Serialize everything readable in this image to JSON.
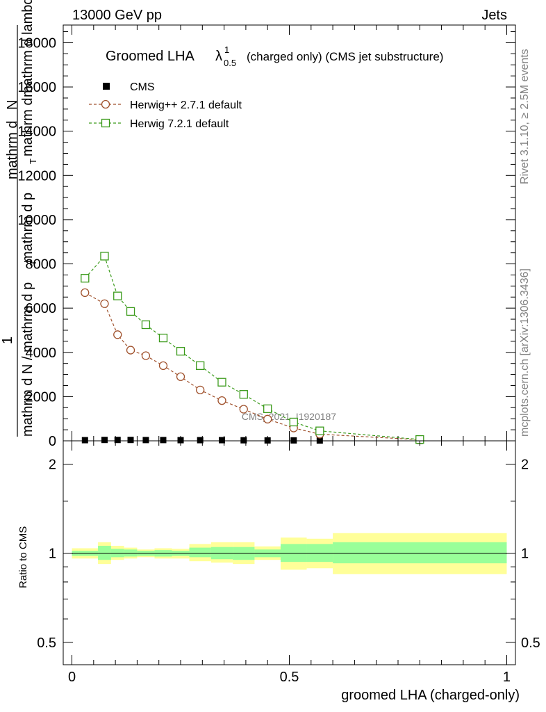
{
  "header": {
    "energy": "13000 GeV pp",
    "category": "Jets"
  },
  "side": {
    "rivet": "Rivet 3.1.10, ≥ 2.5M events",
    "mcplots": "mcplots.cern.ch [arXiv:1306.3436]"
  },
  "chart_data": [
    {
      "type": "line",
      "title": "Groomed LHA",
      "title_symbol": "λ",
      "title_sup": "1",
      "title_sub": "0.5",
      "subtitle": "(charged only) (CMS jet substructure)",
      "ylabel_lines": [
        "1",
        "mathrm d N / mathrm d p_T mathrm d N",
        "mathrm d p_T mathrm d lambda",
        "mathrm d^2N"
      ],
      "ylabel_parts": {
        "frac": "1",
        "denom": "mathrm d N / mathrm d p",
        "sub_t": "T",
        "mid": "mathrm d p",
        "mid_sub": "T",
        "num_a": "mathrm d",
        "num_b": "mathrm d lambda",
        "num_c": "mathrm d",
        "top": "N"
      },
      "ylim": [
        0,
        18800
      ],
      "yticks": [
        0,
        2000,
        4000,
        6000,
        8000,
        10000,
        12000,
        14000,
        16000,
        18000
      ],
      "ytick_labels": [
        "0",
        "2000",
        "4000",
        "6000",
        "8000",
        "10000",
        "12000",
        "14000",
        "16000",
        "18000"
      ],
      "xlim": [
        -0.02,
        1.02
      ],
      "watermark": "CMS_2021_I1920187",
      "legend_position": "top-left",
      "series": [
        {
          "name": "CMS",
          "marker": "filled-square",
          "color": "#000000",
          "x": [
            0.03,
            0.075,
            0.105,
            0.135,
            0.17,
            0.21,
            0.25,
            0.295,
            0.345,
            0.395,
            0.45,
            0.51,
            0.57,
            0.8
          ],
          "y": [
            30,
            40,
            40,
            40,
            35,
            35,
            30,
            30,
            30,
            25,
            20,
            20,
            15,
            5
          ]
        },
        {
          "name": "Herwig++ 2.7.1 default",
          "marker": "open-circle",
          "color": "#a0522d",
          "x": [
            0.03,
            0.075,
            0.105,
            0.135,
            0.17,
            0.21,
            0.25,
            0.295,
            0.345,
            0.395,
            0.45,
            0.51,
            0.57,
            0.8
          ],
          "y": [
            6700,
            6200,
            4800,
            4100,
            3850,
            3400,
            2900,
            2300,
            1820,
            1430,
            980,
            580,
            300,
            50
          ]
        },
        {
          "name": "Herwig 7.2.1 default",
          "marker": "open-square",
          "color": "#3a9a1a",
          "x": [
            0.03,
            0.075,
            0.105,
            0.135,
            0.17,
            0.21,
            0.25,
            0.295,
            0.345,
            0.395,
            0.45,
            0.51,
            0.57,
            0.8
          ],
          "y": [
            7350,
            8350,
            6550,
            5850,
            5250,
            4650,
            4050,
            3400,
            2650,
            2100,
            1450,
            850,
            450,
            60
          ]
        }
      ]
    },
    {
      "type": "area",
      "ylabel": "Ratio to CMS",
      "xlabel": "groomed LHA (charged-only)",
      "xlim": [
        -0.02,
        1.02
      ],
      "xticks": [
        0,
        0.5,
        1
      ],
      "xtick_labels": [
        "0",
        "0.5",
        "1"
      ],
      "ylim": [
        0.42,
        2.4
      ],
      "log_scale": true,
      "yticks": [
        0.5,
        1,
        2
      ],
      "ytick_labels": [
        "0.5",
        "1",
        "2"
      ],
      "bin_edges": [
        0,
        0.015,
        0.06,
        0.09,
        0.12,
        0.15,
        0.19,
        0.23,
        0.27,
        0.32,
        0.37,
        0.42,
        0.48,
        0.54,
        0.6,
        1.0
      ],
      "band_inner": {
        "color": "#99ff99",
        "lo": [
          0.98,
          0.98,
          0.95,
          0.97,
          0.975,
          0.98,
          0.975,
          0.98,
          0.97,
          0.955,
          0.95,
          0.97,
          0.935,
          0.935,
          0.925
        ],
        "hi": [
          1.02,
          1.02,
          1.06,
          1.035,
          1.03,
          1.02,
          1.025,
          1.02,
          1.045,
          1.05,
          1.05,
          1.03,
          1.075,
          1.075,
          1.09
        ]
      },
      "band_outer": {
        "color": "#ffff99",
        "lo": [
          0.96,
          0.96,
          0.92,
          0.95,
          0.96,
          0.97,
          0.96,
          0.96,
          0.94,
          0.93,
          0.92,
          0.95,
          0.88,
          0.89,
          0.85
        ],
        "hi": [
          1.04,
          1.04,
          1.09,
          1.06,
          1.045,
          1.03,
          1.04,
          1.035,
          1.075,
          1.09,
          1.09,
          1.055,
          1.13,
          1.12,
          1.17
        ]
      },
      "reference": 1.0
    }
  ]
}
